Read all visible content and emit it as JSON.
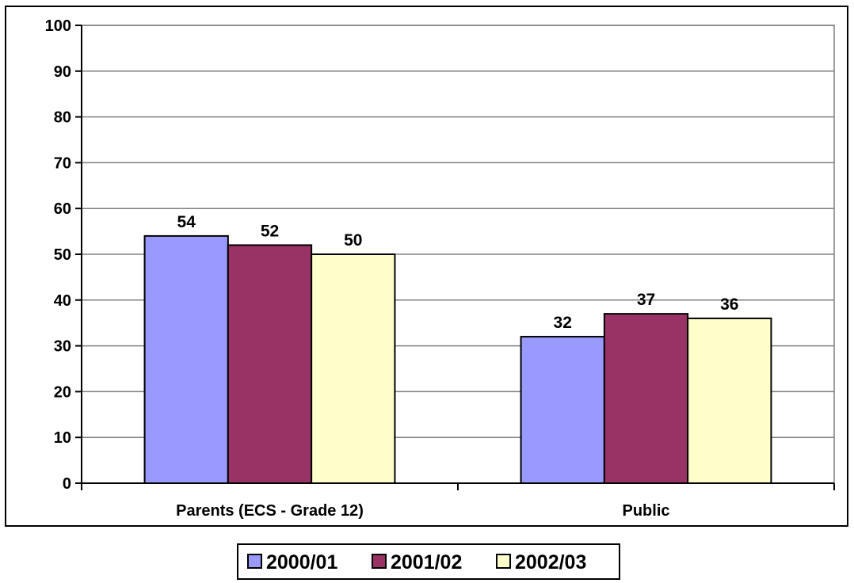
{
  "chart_data": {
    "type": "bar",
    "categories": [
      "Parents (ECS - Grade 12)",
      "Public"
    ],
    "series": [
      {
        "name": "2000/01",
        "values": [
          54,
          32
        ],
        "color": "#9999FF"
      },
      {
        "name": "2001/02",
        "values": [
          52,
          37
        ],
        "color": "#993366"
      },
      {
        "name": "2002/03",
        "values": [
          50,
          36
        ],
        "color": "#FFFFCC"
      }
    ],
    "ylim": [
      0,
      100
    ],
    "yticks": [
      0,
      10,
      20,
      30,
      40,
      50,
      60,
      70,
      80,
      90,
      100
    ],
    "grid": true,
    "legend_position": "bottom",
    "title": "",
    "xlabel": "",
    "ylabel": ""
  }
}
